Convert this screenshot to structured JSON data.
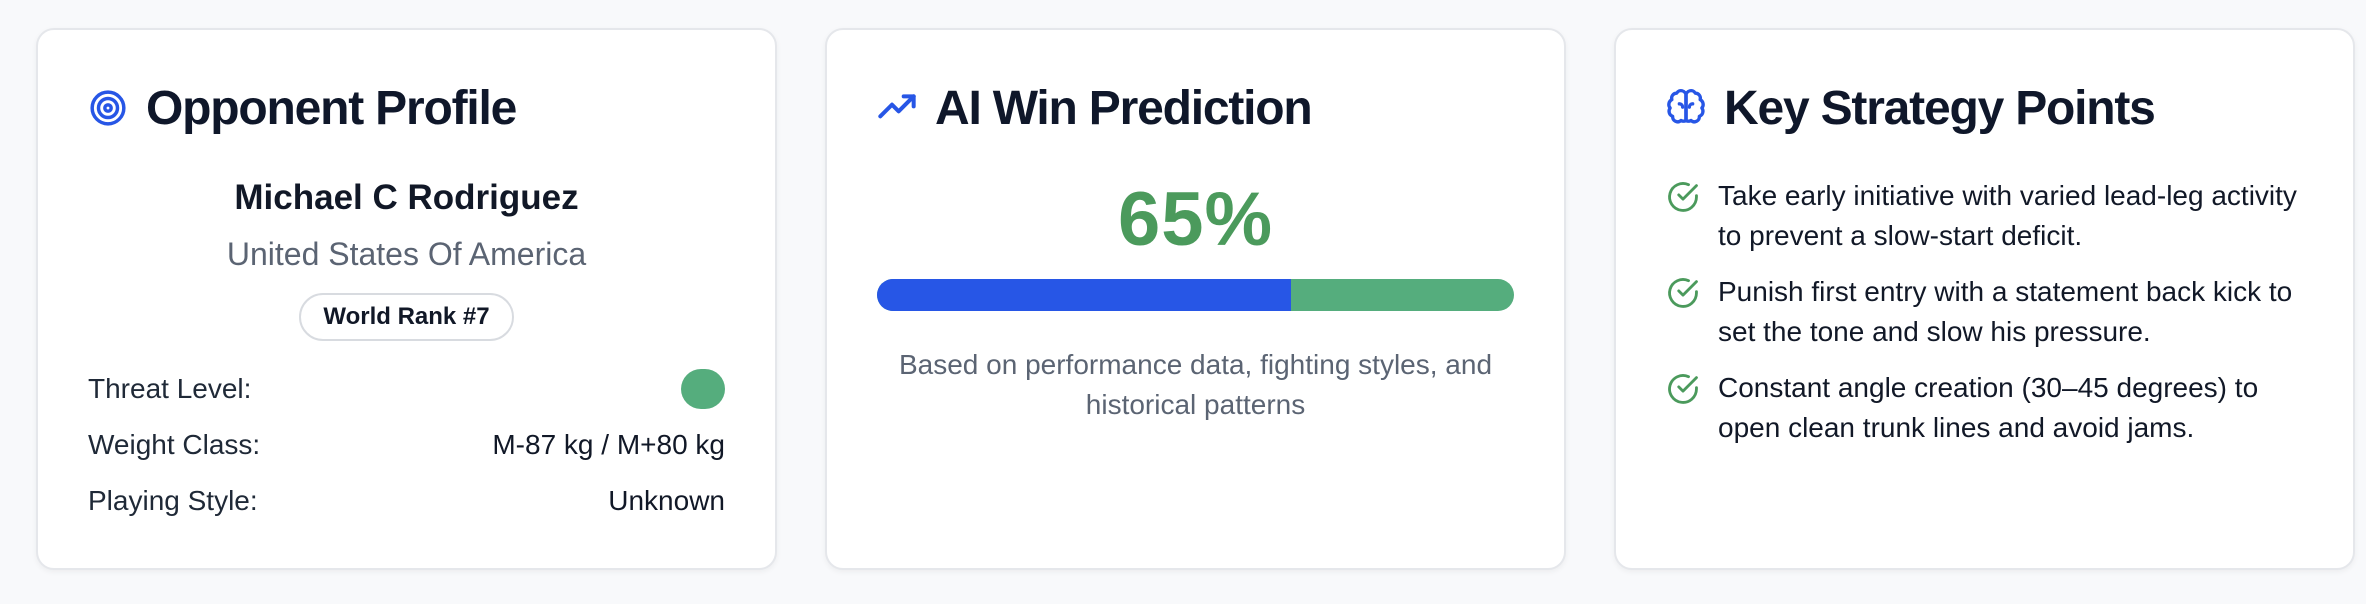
{
  "opponent": {
    "title": "Opponent Profile",
    "name": "Michael C Rodriguez",
    "country": "United States Of America",
    "rank": "World Rank #7",
    "rows": {
      "threat_label": "Threat Level:",
      "threat_color": "#55ad7d",
      "weight_label": "Weight Class:",
      "weight_value": "M-87 kg / M+80 kg",
      "style_label": "Playing Style:",
      "style_value": "Unknown"
    }
  },
  "prediction": {
    "title": "AI Win Prediction",
    "percent_text": "65%",
    "bar_fill_fraction": 0.65,
    "colors": {
      "fill": "#2756e6",
      "rest": "#55ad7d",
      "percent": "#4b9a5c"
    },
    "note": "Based on performance data, fighting styles, and historical patterns"
  },
  "strategy": {
    "title": "Key Strategy Points",
    "points": [
      "Take early initiative with varied lead-leg activity to prevent a slow-start deficit.",
      "Punish first entry with a statement back kick to set the tone and slow his pressure.",
      "Constant angle creation (30–45 degrees) to open clean trunk lines and avoid jams."
    ]
  },
  "icons": {
    "opponent": "target-icon",
    "prediction": "trending-up-icon",
    "strategy": "brain-icon",
    "check": "check-circle-icon"
  }
}
